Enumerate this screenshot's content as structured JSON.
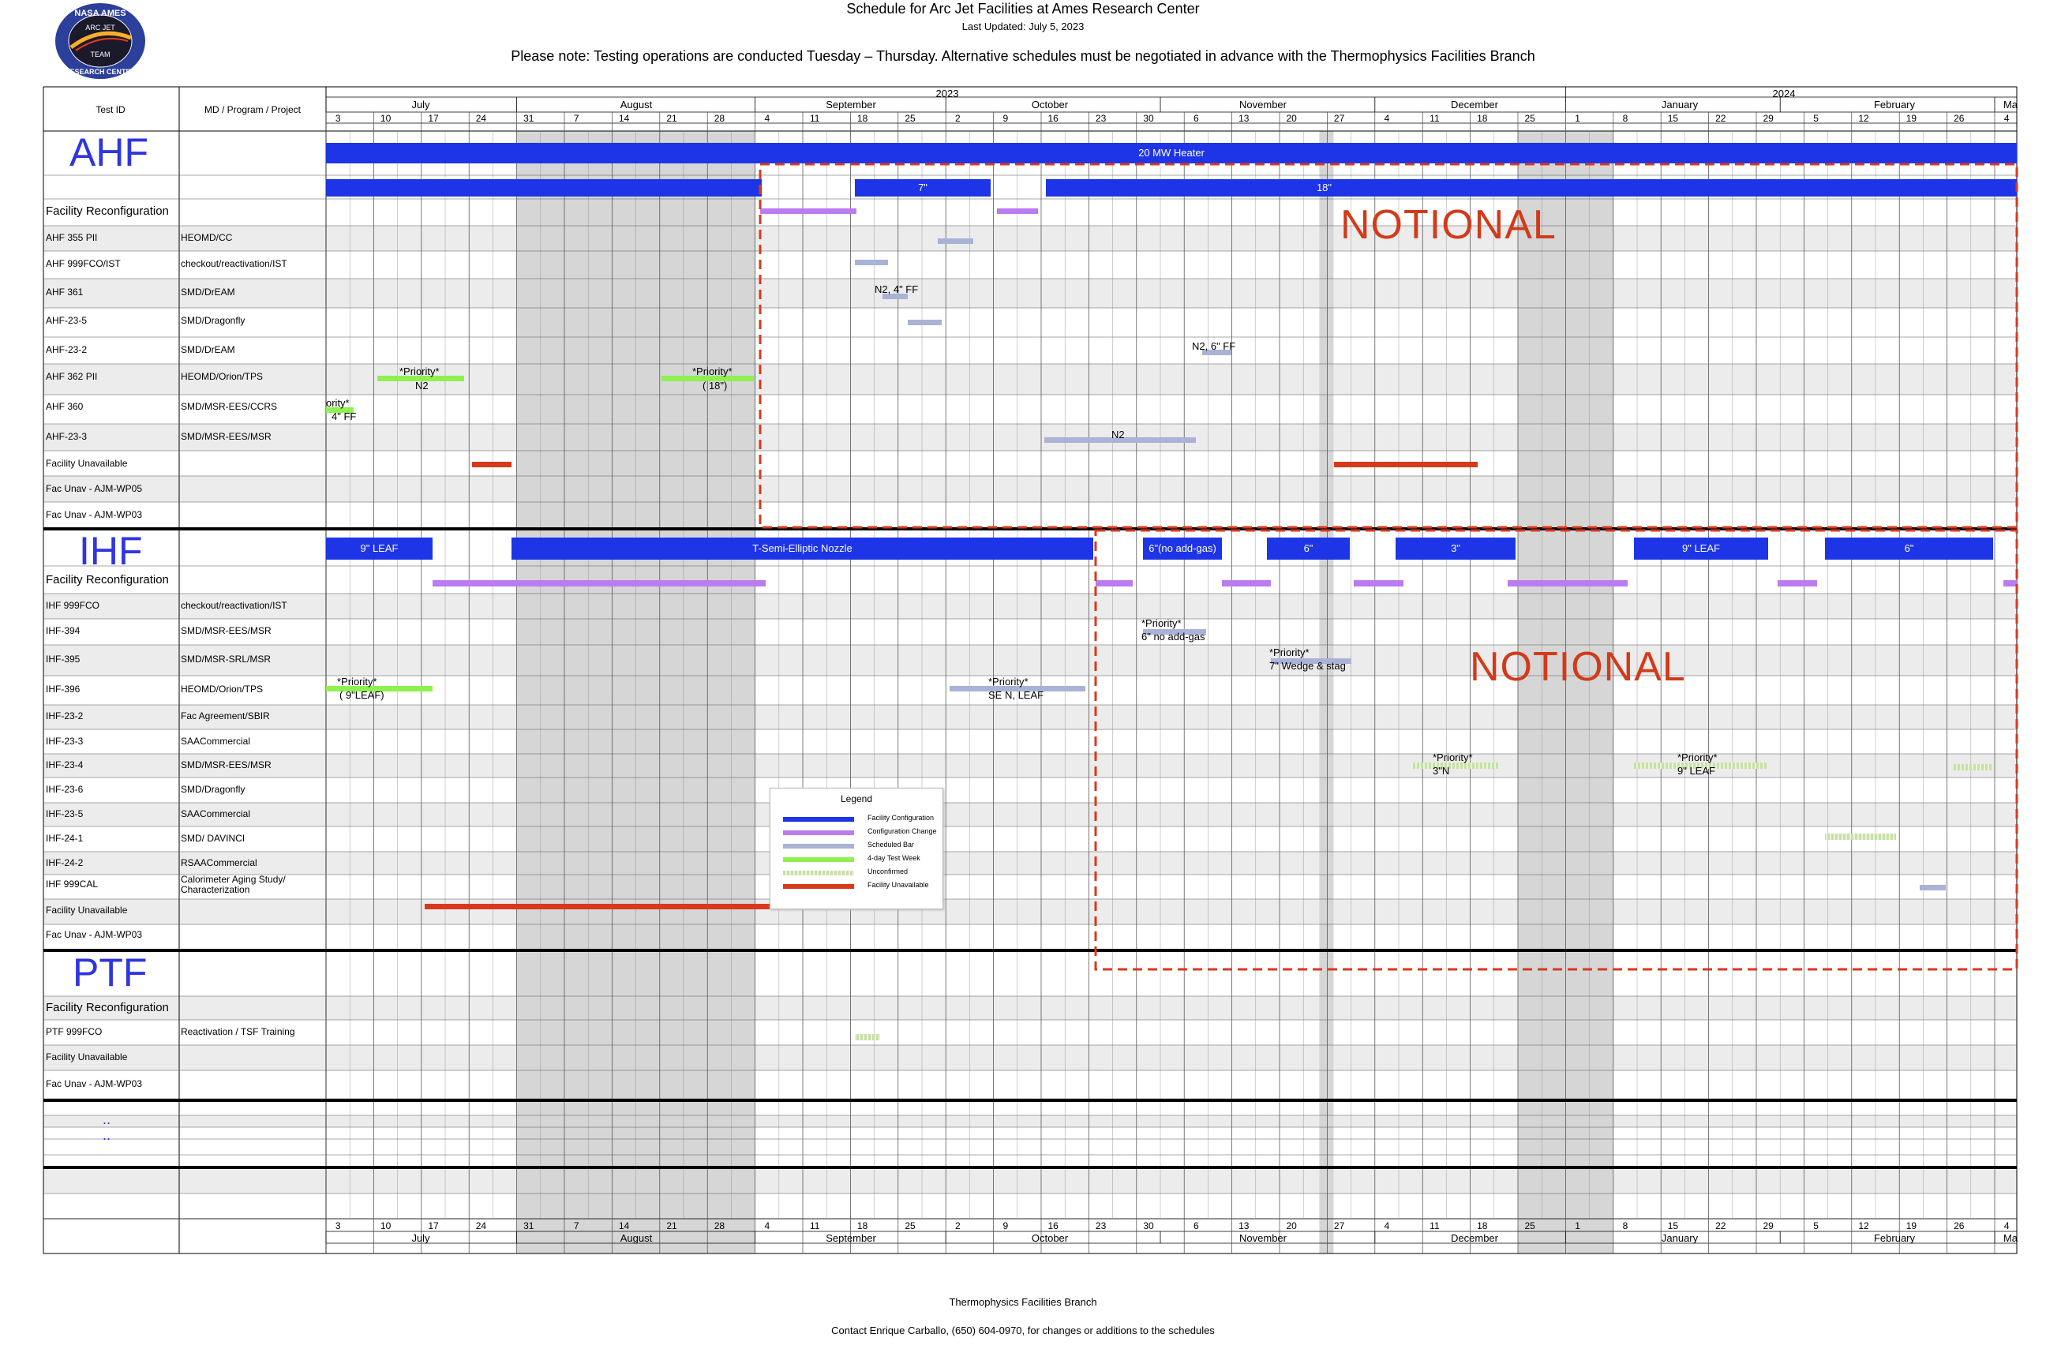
{
  "header": {
    "title": "Schedule for Arc Jet Facilities at Ames Research Center",
    "updated": "Last Updated:  July 5, 2023",
    "note": "Please note: Testing operations are conducted Tuesday – Thursday. Alternative schedules must be negotiated in advance with the Thermophysics Facilities Branch"
  },
  "logo": {
    "top": "NASA AMES",
    "middle": "ARC JET",
    "inner": "TEAM",
    "bottom": "RESEARCH CENTER"
  },
  "columns": {
    "test_id": "Test ID",
    "program": "MD / Program / Project"
  },
  "years": {
    "y2023": "2023",
    "y2024": "2024"
  },
  "months": [
    "July",
    "August",
    "September",
    "October",
    "November",
    "December",
    "January",
    "February",
    "Ma"
  ],
  "weeks": [
    "3",
    "10",
    "17",
    "24",
    "31",
    "7",
    "14",
    "21",
    "28",
    "4",
    "11",
    "18",
    "25",
    "2",
    "9",
    "16",
    "23",
    "30",
    "6",
    "13",
    "20",
    "27",
    "4",
    "11",
    "18",
    "25",
    "1",
    "8",
    "15",
    "22",
    "29",
    "5",
    "12",
    "19",
    "26",
    "4"
  ],
  "sections": {
    "ahf": "AHF",
    "ihf": "IHF",
    "ptf": "PTF"
  },
  "ahf_rows": [
    {
      "id": "Facility Reconfiguration",
      "prog": ""
    },
    {
      "id": "AHF 355 PII",
      "prog": "HEOMD/CC"
    },
    {
      "id": "AHF 999FCO/IST",
      "prog": "checkout/reactivation/IST"
    },
    {
      "id": "AHF 361",
      "prog": "SMD/DrEAM"
    },
    {
      "id": "AHF-23-5",
      "prog": "SMD/Dragonfly"
    },
    {
      "id": "AHF-23-2",
      "prog": "SMD/DrEAM"
    },
    {
      "id": "AHF 362 PII",
      "prog": "HEOMD/Orion/TPS"
    },
    {
      "id": "AHF 360",
      "prog": "SMD/MSR-EES/CCRS"
    },
    {
      "id": "AHF-23-3",
      "prog": "SMD/MSR-EES/MSR"
    },
    {
      "id": "Facility Unavailable",
      "prog": ""
    },
    {
      "id": "Fac Unav - AJM-WP05",
      "prog": ""
    },
    {
      "id": "Fac Unav - AJM-WP03",
      "prog": ""
    }
  ],
  "ihf_rows": [
    {
      "id": "Facility Reconfiguration",
      "prog": ""
    },
    {
      "id": "IHF 999FCO",
      "prog": "checkout/reactivation/IST"
    },
    {
      "id": "IHF-394",
      "prog": "SMD/MSR-EES/MSR"
    },
    {
      "id": "IHF-395",
      "prog": "SMD/MSR-SRL/MSR"
    },
    {
      "id": "IHF-396",
      "prog": "HEOMD/Orion/TPS"
    },
    {
      "id": "IHF-23-2",
      "prog": "Fac Agreement/SBIR"
    },
    {
      "id": "IHF-23-3",
      "prog": "SAACommercial"
    },
    {
      "id": "IHF-23-4",
      "prog": "SMD/MSR-EES/MSR"
    },
    {
      "id": "IHF-23-6",
      "prog": "SMD/Dragonfly"
    },
    {
      "id": "IHF-23-5",
      "prog": "SAACommercial"
    },
    {
      "id": "IHF-24-1",
      "prog": "SMD/ DAVINCI"
    },
    {
      "id": "IHF-24-2",
      "prog": "RSAACommercial"
    },
    {
      "id": "IHF 999CAL",
      "prog": "Calorimeter Aging Study/"
    },
    {
      "id": "Facility Unavailable",
      "prog": ""
    },
    {
      "id": "Fac Unav - AJM-WP03",
      "prog": ""
    }
  ],
  "ihf_cal_line2": "Characterization",
  "ptf_rows": [
    {
      "id": "Facility Reconfiguration",
      "prog": ""
    },
    {
      "id": "PTF 999FCO",
      "prog": "Reactivation / TSF Training"
    },
    {
      "id": "Facility Unavailable",
      "prog": ""
    },
    {
      "id": "Fac Unav - AJM-WP03",
      "prog": ""
    }
  ],
  "bars": {
    "ahf_heater": "20 MW Heater",
    "ahf_7": "7\"",
    "ahf_18": "18\"",
    "ihf_9leaf": "9\" LEAF",
    "ihf_tsemi": "T-Semi-Elliptic Nozzle",
    "ihf_6noadd": "6\"(no add-gas)",
    "ihf_6a": "6\"",
    "ihf_3": "3\"",
    "ihf_9leaf2": "9\" LEAF",
    "ihf_6b": "6\""
  },
  "notes": {
    "n2_4ff": "N2, 4\" FF",
    "n2_6ff": "N2, 6\" FF",
    "priority_n2_a": "*Priority*",
    "priority_n2_b": "N2",
    "priority_18_a": "*Priority*",
    "priority_18_b": "( 18\")",
    "ority_a": "ority*",
    "ority_b": "4\" FF",
    "n2": "N2",
    "p394_a": "*Priority*",
    "p394_b": "6\" no add-gas",
    "p395_a": "*Priority*",
    "p395_b": "7\" Wedge & stag",
    "p396a_a": "*Priority*",
    "p396a_b": "( 9\"LEAF)",
    "p396b_a": "*Priority*",
    "p396b_b": "SE N, LEAF",
    "p234a_a": "*Priority*",
    "p234a_b": "3\"N",
    "p234b_a": "*Priority*",
    "p234b_b": "9\" LEAF"
  },
  "notional": "NOTIONAL",
  "legend": {
    "title": "Legend",
    "items": [
      {
        "label": "Facility Configuration",
        "color": "#1d35e6"
      },
      {
        "label": "Configuration Change",
        "color": "#bb7cf0"
      },
      {
        "label": "Scheduled Bar",
        "color": "#a9b3d6"
      },
      {
        "label": "4-day Test Week",
        "color": "#8ff050"
      },
      {
        "label": "Unconfirmed",
        "color": "#c8e0a8"
      },
      {
        "label": "Facility Unavailable",
        "color": "#d8391c"
      }
    ]
  },
  "footer": {
    "branch": "Thermophysics Facilities Branch",
    "contact": "Contact Enrique Carballo, (650) 604-0970, for changes or additions to the schedules"
  },
  "colors": {
    "facility_config": "#1d35e6",
    "config_change": "#bb7cf0",
    "scheduled": "#a9b3d6",
    "four_day": "#8ff050",
    "unconfirmed": "#c8e0a8",
    "unavailable": "#d8391c",
    "section_label": "#2f35e0"
  },
  "extra_dots": [
    "..",
    ".."
  ]
}
